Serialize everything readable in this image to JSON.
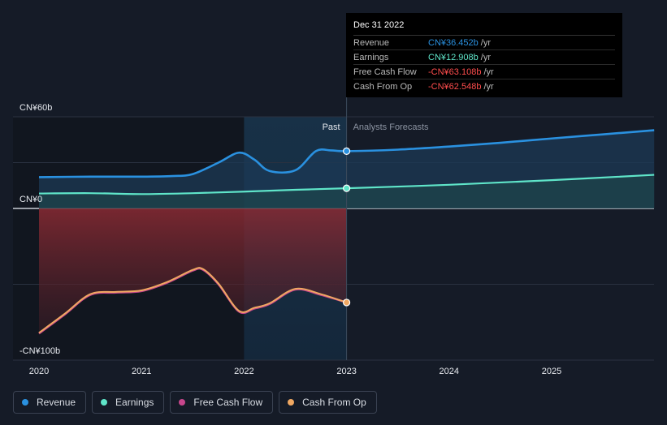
{
  "chart_data": {
    "type": "area",
    "y_tick_labels": [
      "CN¥60b",
      "CN¥0",
      "-CN¥100b"
    ],
    "ylim": [
      -100,
      60
    ],
    "xlim": [
      2020,
      2026
    ],
    "x_tick_labels": [
      "2020",
      "2021",
      "2022",
      "2023",
      "2024",
      "2025"
    ],
    "x_ticks": [
      2020,
      2021,
      2022,
      2023,
      2024,
      2025
    ],
    "past_label": "Past",
    "forecast_label": "Analysts Forecasts",
    "divider_x": 2023,
    "highlight_start": 2022,
    "series": [
      {
        "name": "Revenue",
        "color": "#2a91e0",
        "points": [
          [
            2020,
            20.5
          ],
          [
            2020.5,
            20.8
          ],
          [
            2021,
            20.8
          ],
          [
            2021.3,
            21.2
          ],
          [
            2021.5,
            22.5
          ],
          [
            2021.75,
            30
          ],
          [
            2021.95,
            36.5
          ],
          [
            2022.1,
            32
          ],
          [
            2022.25,
            24.5
          ],
          [
            2022.5,
            25
          ],
          [
            2022.7,
            37.5
          ],
          [
            2022.85,
            38
          ],
          [
            2023,
            37.5
          ]
        ],
        "forecast": [
          [
            2023,
            37.5
          ],
          [
            2023.5,
            38.5
          ],
          [
            2024,
            40.5
          ],
          [
            2024.5,
            43
          ],
          [
            2025,
            45.8
          ],
          [
            2025.5,
            48.5
          ],
          [
            2026,
            51.2
          ]
        ],
        "end_value": 36.452
      },
      {
        "name": "Earnings",
        "color": "#5fe5c9",
        "points": [
          [
            2020,
            9.8
          ],
          [
            2020.5,
            10
          ],
          [
            2021,
            9.4
          ],
          [
            2021.5,
            10
          ],
          [
            2022,
            11
          ],
          [
            2022.5,
            12.2
          ],
          [
            2023,
            13.2
          ]
        ],
        "forecast": [
          [
            2023,
            13.2
          ],
          [
            2024,
            15.5
          ],
          [
            2025,
            18.5
          ],
          [
            2026,
            22
          ]
        ],
        "end_value": 12.908
      },
      {
        "name": "Free Cash Flow",
        "color": "#c7468c",
        "points": [
          [
            2020,
            -82.5
          ],
          [
            2020.25,
            -70
          ],
          [
            2020.5,
            -57
          ],
          [
            2020.75,
            -55.5
          ],
          [
            2021,
            -54.5
          ],
          [
            2021.25,
            -49
          ],
          [
            2021.5,
            -41
          ],
          [
            2021.6,
            -40.5
          ],
          [
            2021.75,
            -50
          ],
          [
            2021.95,
            -68
          ],
          [
            2022.1,
            -66
          ],
          [
            2022.25,
            -63
          ],
          [
            2022.5,
            -53.5
          ],
          [
            2022.75,
            -57
          ],
          [
            2023,
            -62
          ]
        ],
        "end_value": -63.108
      },
      {
        "name": "Cash From Op",
        "color": "#f0a862",
        "points": [
          [
            2020,
            -82
          ],
          [
            2020.25,
            -69.5
          ],
          [
            2020.5,
            -56.5
          ],
          [
            2020.75,
            -55
          ],
          [
            2021,
            -54
          ],
          [
            2021.25,
            -48.5
          ],
          [
            2021.5,
            -40.5
          ],
          [
            2021.6,
            -40
          ],
          [
            2021.75,
            -49.5
          ],
          [
            2021.95,
            -67.5
          ],
          [
            2022.1,
            -65.5
          ],
          [
            2022.25,
            -62.5
          ],
          [
            2022.5,
            -53
          ],
          [
            2022.75,
            -56.5
          ],
          [
            2023,
            -62
          ]
        ],
        "end_value": -62.548
      }
    ]
  },
  "tooltip": {
    "title": "Dec 31 2022",
    "rows": [
      {
        "label": "Revenue",
        "value": "CN¥36.452b",
        "unit": "/yr",
        "color": "#2a91e0"
      },
      {
        "label": "Earnings",
        "value": "CN¥12.908b",
        "unit": "/yr",
        "color": "#5fe5c9"
      },
      {
        "label": "Free Cash Flow",
        "value": "-CN¥63.108b",
        "unit": "/yr",
        "color": "#ff4d4d"
      },
      {
        "label": "Cash From Op",
        "value": "-CN¥62.548b",
        "unit": "/yr",
        "color": "#ff4d4d"
      }
    ]
  },
  "legend": {
    "items": [
      {
        "label": "Revenue",
        "color": "#2a91e0"
      },
      {
        "label": "Earnings",
        "color": "#5fe5c9"
      },
      {
        "label": "Free Cash Flow",
        "color": "#c7468c"
      },
      {
        "label": "Cash From Op",
        "color": "#f0a862"
      }
    ]
  }
}
